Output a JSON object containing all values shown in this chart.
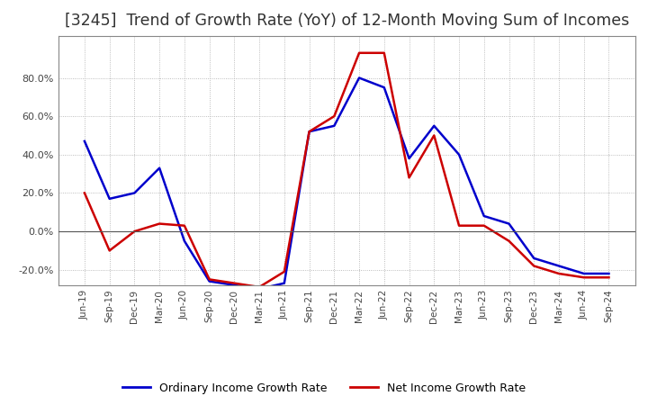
{
  "title": "[3245]  Trend of Growth Rate (YoY) of 12-Month Moving Sum of Incomes",
  "title_fontsize": 12.5,
  "background_color": "#ffffff",
  "grid_color": "#aaaaaa",
  "ylim": [
    -0.28,
    1.02
  ],
  "yticks": [
    -0.2,
    0.0,
    0.2,
    0.4,
    0.6,
    0.8
  ],
  "x_labels": [
    "Jun-19",
    "Sep-19",
    "Dec-19",
    "Mar-20",
    "Jun-20",
    "Sep-20",
    "Dec-20",
    "Mar-21",
    "Jun-21",
    "Sep-21",
    "Dec-21",
    "Mar-22",
    "Jun-22",
    "Sep-22",
    "Dec-22",
    "Mar-23",
    "Jun-23",
    "Sep-23",
    "Dec-23",
    "Mar-24",
    "Jun-24",
    "Sep-24"
  ],
  "ordinary_income": [
    0.47,
    0.17,
    0.2,
    0.33,
    -0.05,
    -0.26,
    -0.28,
    -0.3,
    -0.27,
    0.52,
    0.55,
    0.8,
    0.75,
    0.38,
    0.55,
    0.4,
    0.08,
    0.04,
    -0.14,
    -0.18,
    -0.22,
    -0.22
  ],
  "net_income": [
    0.2,
    -0.1,
    0.0,
    0.04,
    0.03,
    -0.25,
    -0.27,
    -0.29,
    -0.21,
    0.52,
    0.6,
    0.93,
    0.93,
    0.28,
    0.5,
    0.03,
    0.03,
    -0.05,
    -0.18,
    -0.22,
    -0.24,
    -0.24
  ],
  "line_color_ordinary": "#0000cc",
  "line_color_net": "#cc0000",
  "legend_labels": [
    "Ordinary Income Growth Rate",
    "Net Income Growth Rate"
  ]
}
